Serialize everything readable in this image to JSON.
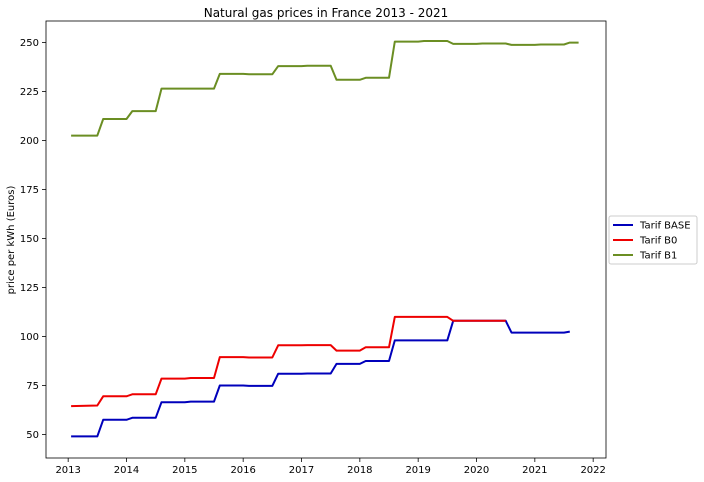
{
  "chart_data": {
    "type": "line",
    "title": "Natural gas prices in France 2013 - 2021",
    "xlabel": "",
    "ylabel": "price per kWh (Euros)",
    "xlim": [
      2012.62,
      2022.22
    ],
    "ylim": [
      38,
      261
    ],
    "xticks": [
      2013,
      2014,
      2015,
      2016,
      2017,
      2018,
      2019,
      2020,
      2021,
      2022
    ],
    "yticks": [
      50,
      75,
      100,
      125,
      150,
      175,
      200,
      225,
      250
    ],
    "grid": false,
    "legend": "center-right outside",
    "series": [
      {
        "name": "Tarif BASE",
        "color": "#0000bb",
        "x": [
          2013.05,
          2013.5,
          2013.6,
          2014.0,
          2014.1,
          2014.5,
          2014.6,
          2015.0,
          2015.1,
          2015.5,
          2015.6,
          2016.0,
          2016.1,
          2016.5,
          2016.6,
          2017.0,
          2017.1,
          2017.5,
          2017.6,
          2018.0,
          2018.1,
          2018.5,
          2018.6,
          2019.0,
          2019.1,
          2019.5,
          2019.6,
          2020.0,
          2020.1,
          2020.5,
          2020.6,
          2021.0,
          2021.1,
          2021.5,
          2021.6
        ],
        "y": [
          49,
          49,
          57.5,
          57.5,
          58.5,
          58.5,
          66.5,
          66.5,
          66.8,
          66.8,
          75,
          75,
          74.8,
          74.8,
          81,
          81,
          81.1,
          81.1,
          86,
          86,
          87.5,
          87.5,
          98,
          98,
          98,
          98,
          108,
          108,
          108,
          108,
          102,
          102,
          102,
          102,
          102.5
        ]
      },
      {
        "name": "Tarif B0",
        "color": "#ee0000",
        "x": [
          2013.05,
          2013.5,
          2013.6,
          2014.0,
          2014.1,
          2014.5,
          2014.6,
          2015.0,
          2015.1,
          2015.5,
          2015.6,
          2016.0,
          2016.1,
          2016.5,
          2016.6,
          2017.0,
          2017.1,
          2017.5,
          2017.6,
          2018.0,
          2018.1,
          2018.5,
          2018.6,
          2019.0,
          2019.1,
          2019.5,
          2019.6,
          2020.0,
          2020.1,
          2020.5
        ],
        "y": [
          64.5,
          64.8,
          69.5,
          69.5,
          70.5,
          70.5,
          78.5,
          78.5,
          78.8,
          78.8,
          89.5,
          89.5,
          89.3,
          89.3,
          95.5,
          95.5,
          95.6,
          95.6,
          92.8,
          92.8,
          94.5,
          94.5,
          110,
          110,
          110,
          110,
          108,
          108,
          108,
          108
        ]
      },
      {
        "name": "Tarif B1",
        "color": "#6b8e23",
        "x": [
          2013.05,
          2013.5,
          2013.6,
          2014.0,
          2014.1,
          2014.5,
          2014.6,
          2015.0,
          2015.1,
          2015.5,
          2015.6,
          2016.0,
          2016.1,
          2016.5,
          2016.6,
          2017.0,
          2017.1,
          2017.5,
          2017.6,
          2018.0,
          2018.1,
          2018.5,
          2018.6,
          2019.0,
          2019.1,
          2019.5,
          2019.6,
          2020.0,
          2020.1,
          2020.5,
          2020.6,
          2021.0,
          2021.1,
          2021.5,
          2021.6,
          2021.75
        ],
        "y": [
          202.5,
          202.5,
          211,
          211,
          215,
          215,
          226.5,
          226.5,
          226.5,
          226.5,
          234,
          234,
          233.8,
          233.8,
          238,
          238,
          238.2,
          238.2,
          231,
          231,
          232,
          232,
          250.5,
          250.5,
          250.8,
          250.8,
          249.3,
          249.3,
          249.5,
          249.5,
          248.8,
          248.8,
          249,
          249,
          250,
          250
        ]
      }
    ]
  }
}
